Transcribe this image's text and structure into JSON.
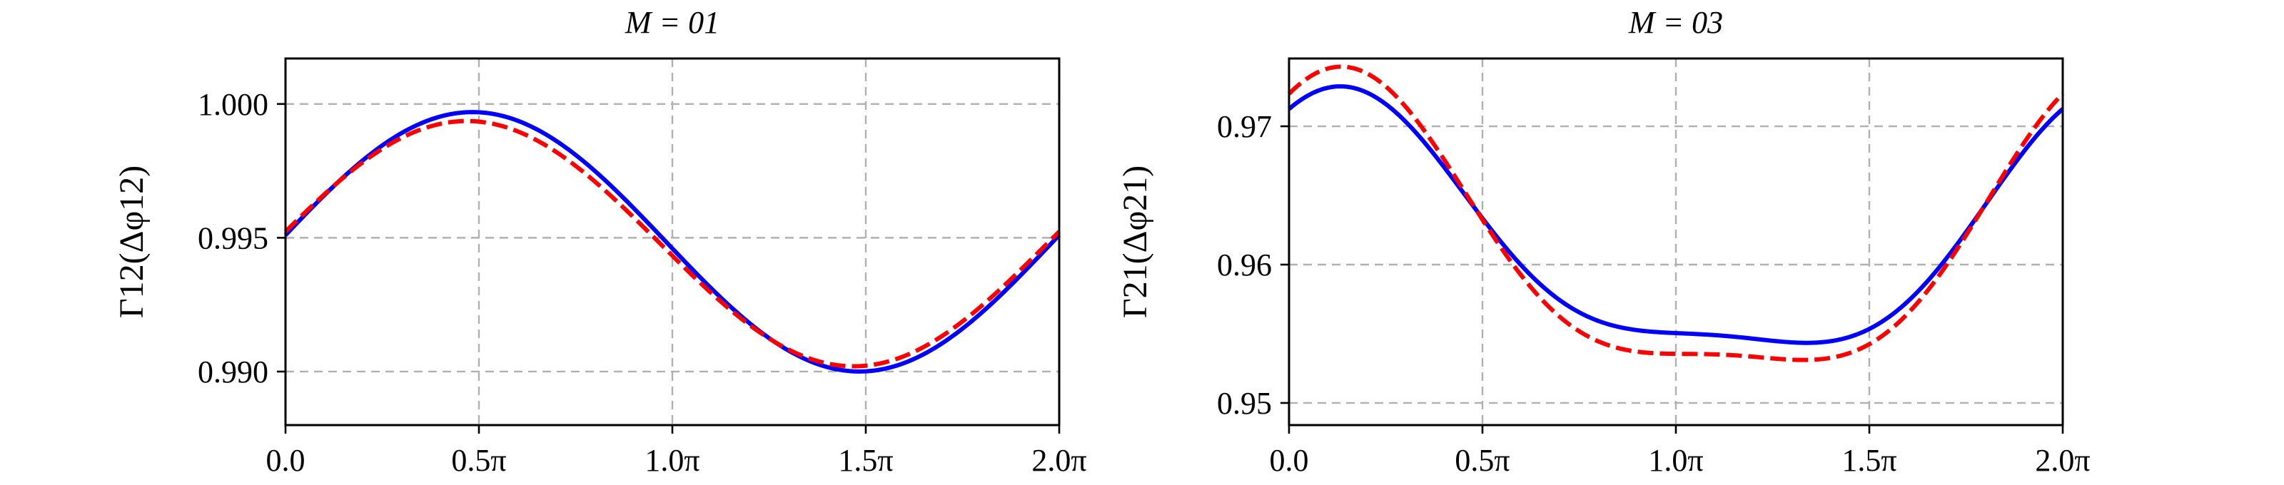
{
  "figure": {
    "colors": {
      "solid": "#0000ff",
      "dashed": "#ff0000",
      "grid": "#b0b0b0"
    }
  },
  "chart_data": [
    {
      "type": "line",
      "title": "M = 01",
      "ylabel": "Γ12(Δφ12)",
      "xlim": [
        0,
        6.2832
      ],
      "ylim": [
        0.988,
        1.0017
      ],
      "x_ticks": [
        0,
        1.5708,
        3.1416,
        4.7124,
        6.2832
      ],
      "x_tick_labels": [
        "0.0",
        "0.5π",
        "1.0π",
        "1.5π",
        "2.0π"
      ],
      "y_ticks": [
        0.99,
        0.995,
        1.0
      ],
      "y_tick_labels": [
        "0.990",
        "0.995",
        "1.000"
      ],
      "grid": true,
      "series": [
        {
          "style": "solid",
          "color": "#0000ff",
          "fourier": {
            "a0": 0.99485,
            "terms": [
              {
                "k": 1,
                "a": 0.00025,
                "b": 0.00484
              }
            ]
          }
        },
        {
          "style": "dashed",
          "color": "#ff0000",
          "fourier": {
            "a0": 0.99478,
            "terms": [
              {
                "k": 1,
                "a": 0.00045,
                "b": 0.00456
              }
            ]
          }
        }
      ]
    },
    {
      "type": "line",
      "title": "M = 03",
      "ylabel": "Γ21(Δφ21)",
      "xlim": [
        0,
        6.2832
      ],
      "ylim": [
        0.9484,
        0.9749
      ],
      "x_ticks": [
        0,
        1.5708,
        3.1416,
        4.7124,
        6.2832
      ],
      "x_tick_labels": [
        "0.0",
        "0.5π",
        "1.0π",
        "1.5π",
        "2.0π"
      ],
      "y_ticks": [
        0.95,
        0.96,
        0.97
      ],
      "y_tick_labels": [
        "0.95",
        "0.96",
        "0.97"
      ],
      "grid": true,
      "series": [
        {
          "style": "solid",
          "color": "#0000ff",
          "fourier": {
            "a0": 0.96125,
            "terms": [
              {
                "k": 1,
                "a": 0.0081,
                "b": 0.004
              },
              {
                "k": 2,
                "a": 0.0019,
                "b": 0.0018
              }
            ]
          }
        },
        {
          "style": "dashed",
          "color": "#ff0000",
          "fourier": {
            "a0": 0.96085,
            "terms": [
              {
                "k": 1,
                "a": 0.0094,
                "b": 0.0045
              },
              {
                "k": 2,
                "a": 0.0021,
                "b": 0.0022
              }
            ]
          }
        }
      ]
    }
  ]
}
